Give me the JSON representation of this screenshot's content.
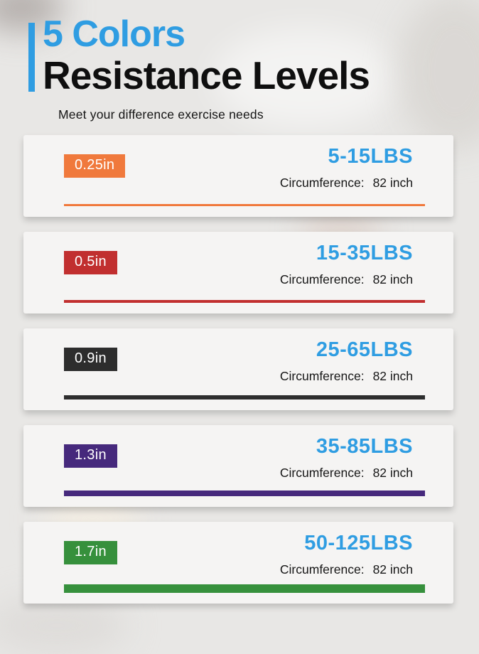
{
  "header": {
    "title_line1": "5 Colors",
    "title_line2": "Resistance Levels",
    "subtitle": "Meet your difference exercise needs",
    "accent_color": "#2f9de2"
  },
  "resistance_color": "#2f9de2",
  "bands": [
    {
      "width": "0.25in",
      "resistance": "5-15LBS",
      "circumference_label": "Circumference:",
      "circumference_value": "82 inch",
      "color": "#f0793c",
      "line_thickness": "3px"
    },
    {
      "width": "0.5in",
      "resistance": "15-35LBS",
      "circumference_label": "Circumference:",
      "circumference_value": "82 inch",
      "color": "#c12f2f",
      "line_thickness": "4px"
    },
    {
      "width": "0.9in",
      "resistance": "25-65LBS",
      "circumference_label": "Circumference:",
      "circumference_value": "82 inch",
      "color": "#2d2d2d",
      "line_thickness": "6px"
    },
    {
      "width": "1.3in",
      "resistance": "35-85LBS",
      "circumference_label": "Circumference:",
      "circumference_value": "82 inch",
      "color": "#46297c",
      "line_thickness": "8px"
    },
    {
      "width": "1.7in",
      "resistance": "50-125LBS",
      "circumference_label": "Circumference:",
      "circumference_value": "82 inch",
      "color": "#36903c",
      "line_thickness": "12px"
    }
  ]
}
